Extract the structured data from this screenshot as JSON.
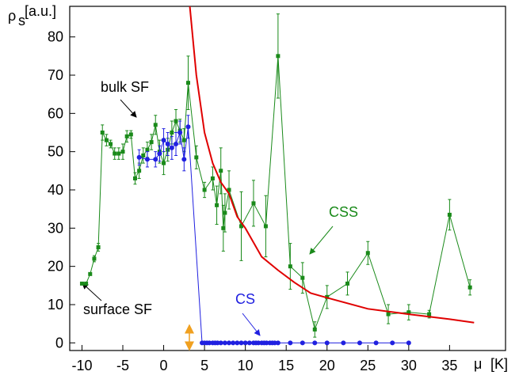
{
  "chart_data": {
    "type": "scatter",
    "y_label": {
      "symbol": "ρ",
      "subscript": "s",
      "unit": "[a.u.]"
    },
    "x_label": {
      "symbol": "μ",
      "unit": "[K]"
    },
    "xlim": [
      -11.5,
      41.85
    ],
    "ylim": [
      -2,
      88
    ],
    "xticks": [
      -10,
      -5,
      0,
      5,
      10,
      15,
      20,
      25,
      30,
      35
    ],
    "yticks": [
      0,
      10,
      20,
      30,
      40,
      50,
      60,
      70,
      80
    ],
    "series": [
      {
        "name": "CSS",
        "color": "#1a8a1a",
        "marker": "square",
        "x": [
          -10,
          -9.5,
          -9,
          -8.5,
          -8,
          -7.5,
          -7,
          -6.5,
          -6,
          -5.5,
          -5,
          -4.5,
          -4,
          -3.5,
          -3,
          -2.5,
          -2,
          -1.5,
          -1,
          -0.5,
          0,
          0.5,
          1,
          1.5,
          2,
          2.5,
          3,
          4,
          5,
          6,
          6.5,
          7,
          7.3,
          7.5,
          8,
          9.5,
          11,
          12.5,
          14,
          15.5,
          17,
          18.5,
          20,
          22.5,
          25,
          27.5,
          30,
          32.5,
          35,
          37.5
        ],
        "values": [
          15.5,
          15.5,
          18,
          22,
          25,
          55,
          53,
          52,
          49.5,
          49.5,
          50,
          54,
          54.5,
          43,
          45,
          49,
          50.5,
          52.5,
          57,
          50,
          47,
          50.5,
          55,
          58,
          55.5,
          53,
          68,
          48.5,
          40,
          43,
          36,
          45,
          30,
          34,
          40,
          30.5,
          36.5,
          30.5,
          75,
          20,
          17,
          3.5,
          12,
          15.5,
          23.5,
          7.5,
          8,
          7.5,
          33.5,
          14.5
        ],
        "errors": [
          0,
          0,
          0,
          0.8,
          1,
          2,
          1.5,
          1,
          1.5,
          1.5,
          2,
          1.5,
          1,
          1.5,
          2,
          2,
          2,
          2,
          2.5,
          3,
          3,
          3,
          3,
          3,
          3,
          3,
          7,
          3,
          2,
          3,
          5,
          6,
          6,
          5,
          5,
          9,
          6,
          8,
          11,
          6,
          4,
          2,
          3,
          3,
          3,
          2.5,
          2,
          1,
          4,
          2
        ]
      },
      {
        "name": "CS",
        "color": "#2020e0",
        "marker": "circle",
        "x": [
          -3,
          -2,
          -1,
          -0.5,
          0,
          0.5,
          1,
          1.5,
          2,
          2.5,
          3,
          4.7,
          5,
          5.3,
          5.6,
          6,
          6.3,
          6.6,
          7,
          7.5,
          8,
          8.5,
          9,
          9.5,
          10,
          10.5,
          11,
          11.3,
          11.6,
          12,
          12.3,
          12.6,
          13,
          13.3,
          13.6,
          14,
          15.5,
          17,
          18.5,
          20,
          22,
          24,
          26,
          28,
          30
        ],
        "values": [
          48.5,
          48,
          48,
          49.5,
          53,
          52,
          51,
          52,
          55,
          48,
          56.5,
          0,
          0,
          0,
          0,
          0,
          0,
          0,
          0,
          0,
          0,
          0,
          0,
          0,
          0,
          0,
          0,
          0,
          0,
          0,
          0,
          0,
          0,
          0,
          0,
          0,
          0,
          0,
          0,
          0,
          0,
          0,
          0,
          0,
          0
        ],
        "errors": [
          2,
          2,
          2,
          2,
          3,
          3,
          3,
          3,
          3,
          3,
          3,
          0,
          0,
          0,
          0,
          0,
          0,
          0,
          0,
          0,
          0,
          0,
          0,
          0,
          0,
          0,
          0,
          0,
          0,
          0,
          0,
          0,
          0,
          0,
          0,
          0,
          0,
          0,
          0,
          0,
          0,
          0,
          0,
          0,
          0
        ]
      },
      {
        "color": "#e00000",
        "marker": "none",
        "x": [
          3.2,
          4,
          5,
          6,
          7,
          8,
          9,
          10,
          12,
          14,
          16,
          18,
          20,
          25,
          30,
          35,
          38
        ],
        "values": [
          88,
          70,
          55,
          47,
          42,
          39,
          33,
          30,
          22.5,
          19,
          15.8,
          13,
          11.8,
          8.9,
          7.5,
          6.2,
          5.3
        ]
      }
    ],
    "annotations": [
      "bulk SF",
      "surface SF"
    ]
  }
}
